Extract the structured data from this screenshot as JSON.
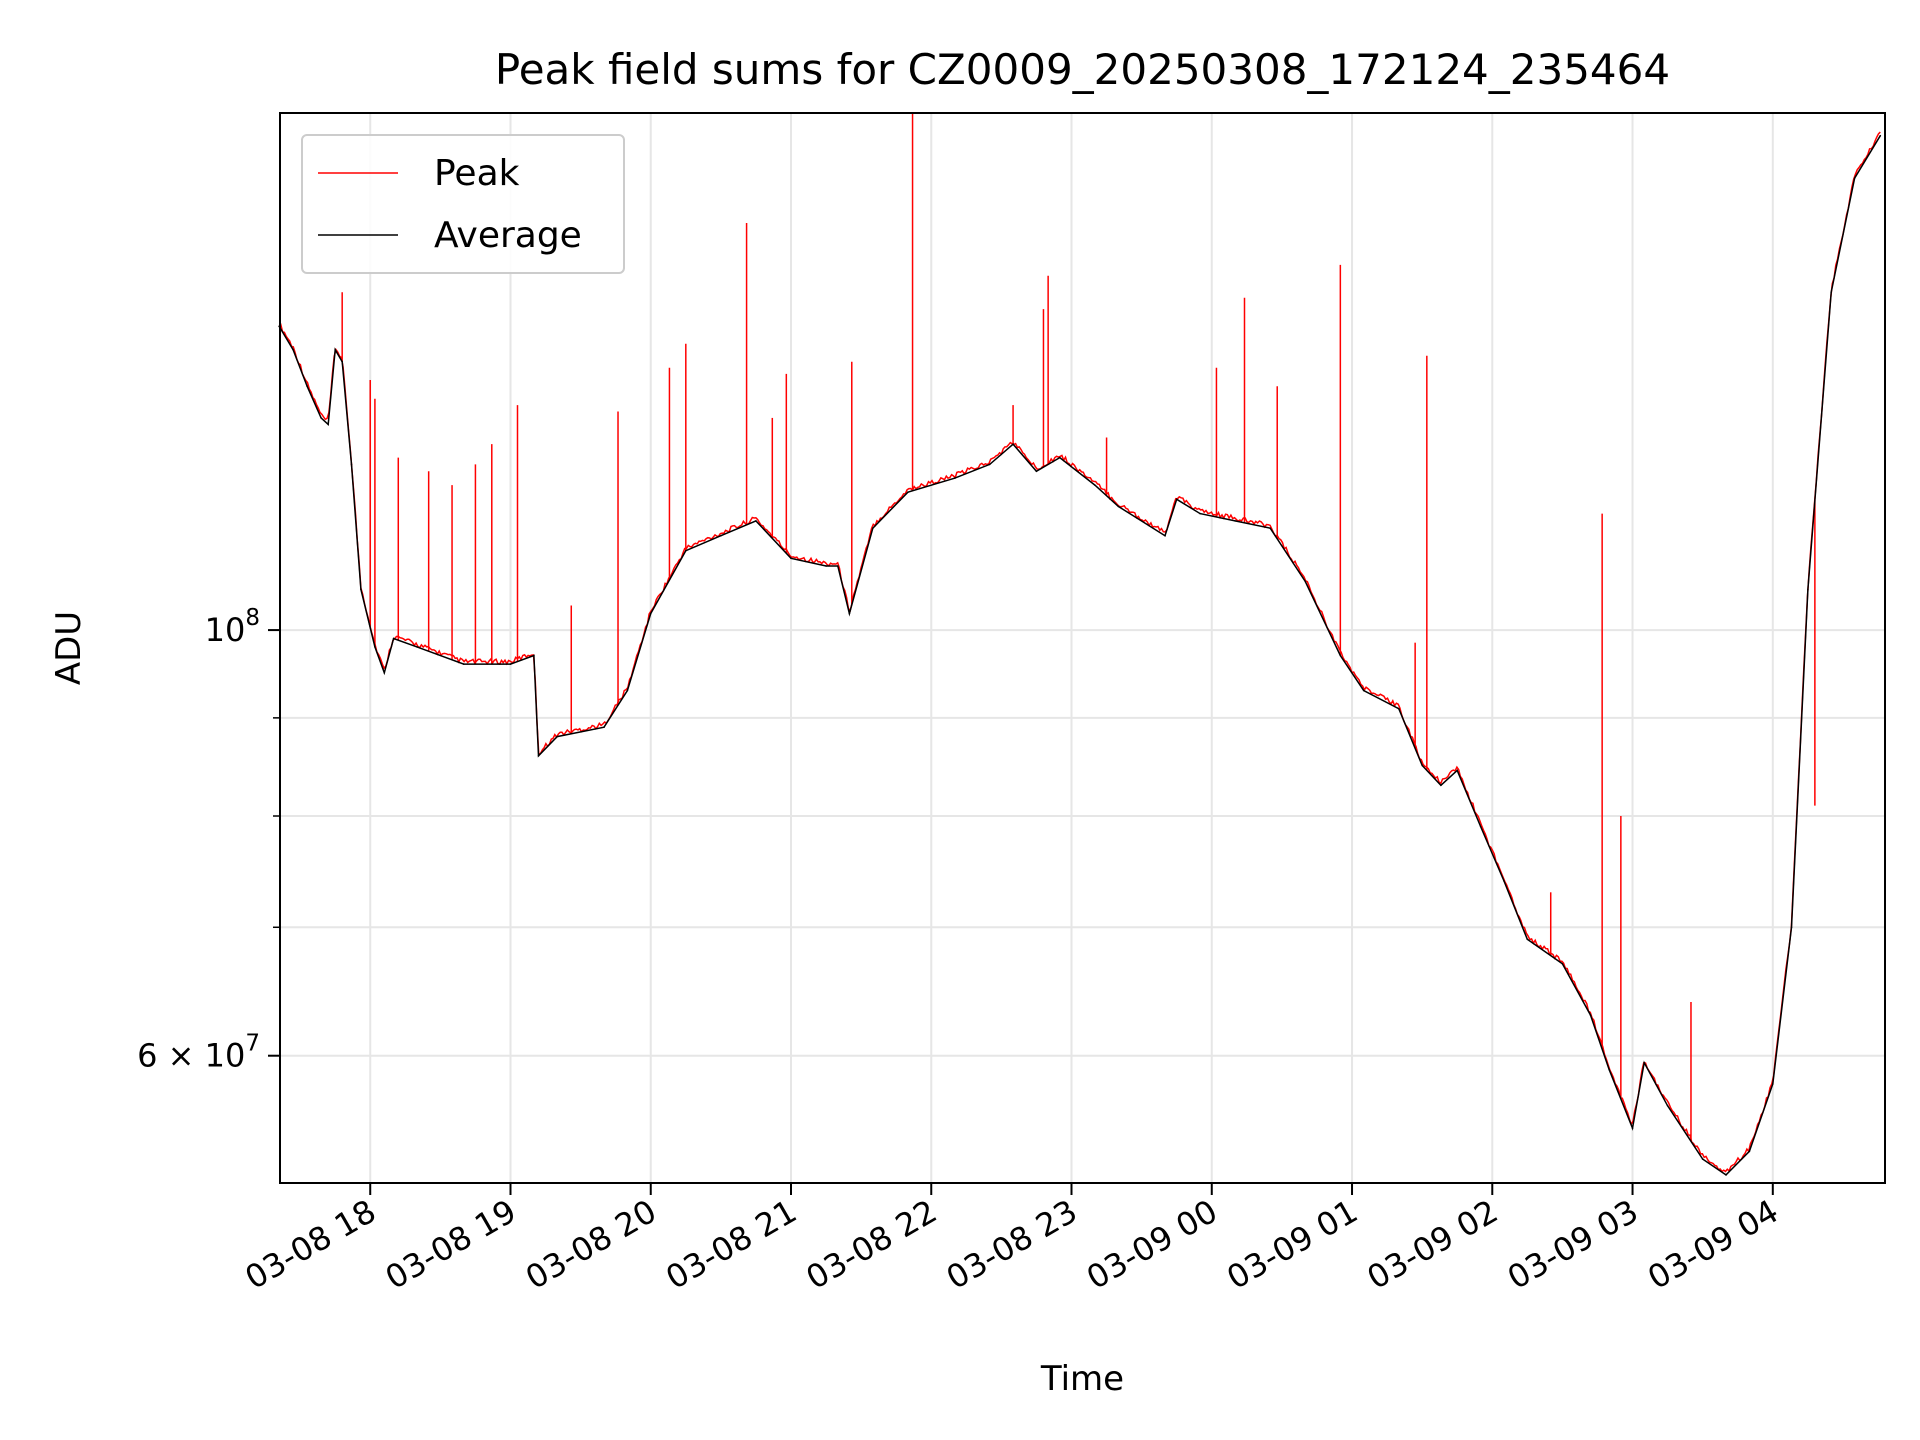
{
  "chart_data": {
    "type": "line",
    "title": "Peak field sums for CZ0009_20250308_172124_235464",
    "xlabel": "Time",
    "ylabel": "ADU",
    "yscale": "log",
    "ylim": [
      51500000,
      186000000
    ],
    "xlim": [
      "2025-03-08 17:21:24",
      "2025-03-09 04:48:00"
    ],
    "grid": true,
    "legend": {
      "placement": "top-left",
      "entries": [
        "Peak",
        "Average"
      ]
    },
    "x_ticks": [
      {
        "t": "2025-03-08 18:00",
        "label": "03-08 18"
      },
      {
        "t": "2025-03-08 19:00",
        "label": "03-08 19"
      },
      {
        "t": "2025-03-08 20:00",
        "label": "03-08 20"
      },
      {
        "t": "2025-03-08 21:00",
        "label": "03-08 21"
      },
      {
        "t": "2025-03-08 22:00",
        "label": "03-08 22"
      },
      {
        "t": "2025-03-08 23:00",
        "label": "03-08 23"
      },
      {
        "t": "2025-03-09 00:00",
        "label": "03-09 00"
      },
      {
        "t": "2025-03-09 01:00",
        "label": "03-09 01"
      },
      {
        "t": "2025-03-09 02:00",
        "label": "03-09 02"
      },
      {
        "t": "2025-03-09 03:00",
        "label": "03-09 03"
      },
      {
        "t": "2025-03-09 04:00",
        "label": "03-09 04"
      }
    ],
    "y_major_ticks": [
      {
        "value": 100000000,
        "base": "10",
        "exp": "8",
        "coef": ""
      },
      {
        "value": 60000000,
        "base": "10",
        "exp": "7",
        "coef": "6 × "
      }
    ],
    "y_minor_ticks": [
      70000000,
      80000000,
      90000000
    ],
    "series": [
      {
        "name": "Average",
        "color": "#000000",
        "points": [
          [
            "2025-03-08 17:21",
            144000000
          ],
          [
            "2025-03-08 17:27",
            140000000
          ],
          [
            "2025-03-08 17:33",
            134000000
          ],
          [
            "2025-03-08 17:39",
            129000000
          ],
          [
            "2025-03-08 17:42",
            128000000
          ],
          [
            "2025-03-08 17:45",
            140000000
          ],
          [
            "2025-03-08 17:48",
            138000000
          ],
          [
            "2025-03-08 17:52",
            122000000
          ],
          [
            "2025-03-08 17:56",
            105000000
          ],
          [
            "2025-03-08 18:02",
            98000000
          ],
          [
            "2025-03-08 18:06",
            95000000
          ],
          [
            "2025-03-08 18:10",
            99000000
          ],
          [
            "2025-03-08 18:20",
            98000000
          ],
          [
            "2025-03-08 18:40",
            96000000
          ],
          [
            "2025-03-08 19:00",
            96000000
          ],
          [
            "2025-03-08 19:10",
            97000000
          ],
          [
            "2025-03-08 19:12",
            86000000
          ],
          [
            "2025-03-08 19:20",
            88000000
          ],
          [
            "2025-03-08 19:40",
            89000000
          ],
          [
            "2025-03-08 19:50",
            93000000
          ],
          [
            "2025-03-08 20:00",
            102000000
          ],
          [
            "2025-03-08 20:15",
            110000000
          ],
          [
            "2025-03-08 20:30",
            112000000
          ],
          [
            "2025-03-08 20:45",
            114000000
          ],
          [
            "2025-03-08 21:00",
            109000000
          ],
          [
            "2025-03-08 21:15",
            108000000
          ],
          [
            "2025-03-08 21:20",
            108000000
          ],
          [
            "2025-03-08 21:25",
            102000000
          ],
          [
            "2025-03-08 21:35",
            113000000
          ],
          [
            "2025-03-08 21:50",
            118000000
          ],
          [
            "2025-03-08 22:10",
            120000000
          ],
          [
            "2025-03-08 22:25",
            122000000
          ],
          [
            "2025-03-08 22:35",
            125000000
          ],
          [
            "2025-03-08 22:45",
            121000000
          ],
          [
            "2025-03-08 22:55",
            123000000
          ],
          [
            "2025-03-08 23:10",
            119000000
          ],
          [
            "2025-03-08 23:20",
            116000000
          ],
          [
            "2025-03-08 23:40",
            112000000
          ],
          [
            "2025-03-08 23:45",
            117000000
          ],
          [
            "2025-03-08 23:55",
            115000000
          ],
          [
            "2025-03-09 00:10",
            114000000
          ],
          [
            "2025-03-09 00:25",
            113000000
          ],
          [
            "2025-03-09 00:40",
            106000000
          ],
          [
            "2025-03-09 00:55",
            97000000
          ],
          [
            "2025-03-09 01:05",
            93000000
          ],
          [
            "2025-03-09 01:20",
            91000000
          ],
          [
            "2025-03-09 01:30",
            85000000
          ],
          [
            "2025-03-09 01:38",
            83000000
          ],
          [
            "2025-03-09 01:45",
            84500000
          ],
          [
            "2025-03-09 01:55",
            79000000
          ],
          [
            "2025-03-09 02:05",
            74000000
          ],
          [
            "2025-03-09 02:15",
            69000000
          ],
          [
            "2025-03-09 02:30",
            67000000
          ],
          [
            "2025-03-09 02:42",
            63000000
          ],
          [
            "2025-03-09 02:50",
            59000000
          ],
          [
            "2025-03-09 03:00",
            55000000
          ],
          [
            "2025-03-09 03:05",
            59500000
          ],
          [
            "2025-03-09 03:15",
            56500000
          ],
          [
            "2025-03-09 03:30",
            53000000
          ],
          [
            "2025-03-09 03:40",
            52000000
          ],
          [
            "2025-03-09 03:50",
            53500000
          ],
          [
            "2025-03-09 04:00",
            58000000
          ],
          [
            "2025-03-09 04:08",
            70000000
          ],
          [
            "2025-03-09 04:15",
            105000000
          ],
          [
            "2025-03-09 04:25",
            150000000
          ],
          [
            "2025-03-09 04:35",
            172000000
          ],
          [
            "2025-03-09 04:46",
            181000000
          ]
        ]
      },
      {
        "name": "Peak",
        "color": "#ff0000",
        "spikes": [
          [
            "2025-03-08 17:48",
            150000000
          ],
          [
            "2025-03-08 18:00",
            135000000
          ],
          [
            "2025-03-08 18:02",
            132000000
          ],
          [
            "2025-03-08 18:12",
            123000000
          ],
          [
            "2025-03-08 18:25",
            121000000
          ],
          [
            "2025-03-08 18:35",
            119000000
          ],
          [
            "2025-03-08 18:45",
            122000000
          ],
          [
            "2025-03-08 18:52",
            125000000
          ],
          [
            "2025-03-08 19:03",
            131000000
          ],
          [
            "2025-03-08 19:26",
            103000000
          ],
          [
            "2025-03-08 19:46",
            130000000
          ],
          [
            "2025-03-08 20:08",
            137000000
          ],
          [
            "2025-03-08 20:15",
            141000000
          ],
          [
            "2025-03-08 20:41",
            163000000
          ],
          [
            "2025-03-08 20:52",
            129000000
          ],
          [
            "2025-03-08 20:58",
            136000000
          ],
          [
            "2025-03-08 21:26",
            138000000
          ],
          [
            "2025-03-08 21:52",
            186000000
          ],
          [
            "2025-03-08 22:35",
            131000000
          ],
          [
            "2025-03-08 22:48",
            147000000
          ],
          [
            "2025-03-08 22:50",
            153000000
          ],
          [
            "2025-03-08 23:15",
            126000000
          ],
          [
            "2025-03-09 00:02",
            137000000
          ],
          [
            "2025-03-09 00:14",
            149000000
          ],
          [
            "2025-03-09 00:28",
            134000000
          ],
          [
            "2025-03-09 00:55",
            155000000
          ],
          [
            "2025-03-09 01:27",
            98500000
          ],
          [
            "2025-03-09 01:32",
            139000000
          ],
          [
            "2025-03-09 02:25",
            73000000
          ],
          [
            "2025-03-09 02:47",
            115000000
          ],
          [
            "2025-03-09 02:55",
            80000000
          ],
          [
            "2025-03-09 03:25",
            64000000
          ],
          [
            "2025-03-09 04:18",
            81000000
          ]
        ]
      }
    ]
  }
}
